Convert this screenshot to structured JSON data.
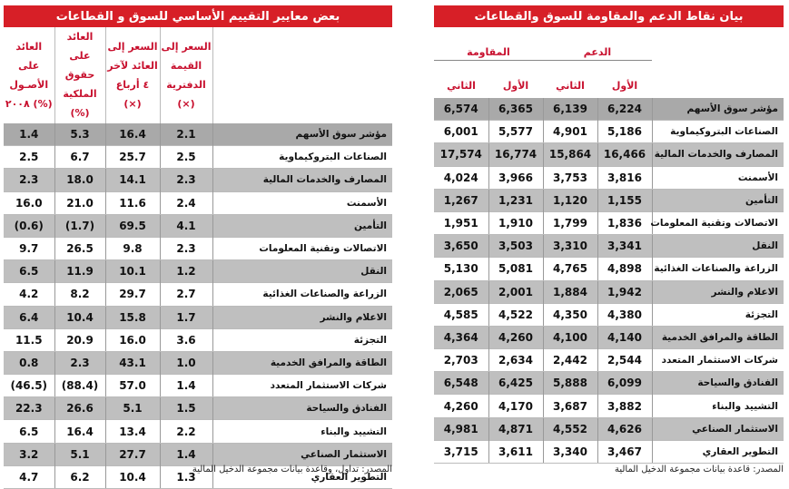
{
  "left": {
    "title": "بعض معايير التقييم الأساسي للسوق و القطاعات",
    "headers": [
      "العائد على الأصـول ٢٠٠٨ (%)",
      "العائد على حقوق الملكية (%)",
      "السعر إلى العائد لآخر ٤ أرباع (×)",
      "السعر إلى القيمة الدفترية (×)"
    ],
    "rows": [
      {
        "label": "مؤشر سوق الأسهم",
        "values": [
          "1.4",
          "5.3",
          "16.4",
          "2.1"
        ]
      },
      {
        "label": "الصناعات البتروكيماوية",
        "values": [
          "2.5",
          "6.7",
          "25.7",
          "2.5"
        ]
      },
      {
        "label": "المصارف والخدمات المالية",
        "values": [
          "2.3",
          "18.0",
          "14.1",
          "2.3"
        ]
      },
      {
        "label": "الأسمنت",
        "values": [
          "16.0",
          "21.0",
          "11.6",
          "2.4"
        ]
      },
      {
        "label": "التأمين",
        "values": [
          "(0.6)",
          "(1.7)",
          "69.5",
          "4.1"
        ]
      },
      {
        "label": "الاتصالات وتقنية المعلومات",
        "values": [
          "9.7",
          "26.5",
          "9.8",
          "2.3"
        ]
      },
      {
        "label": "النقل",
        "values": [
          "6.5",
          "11.9",
          "10.1",
          "1.2"
        ]
      },
      {
        "label": "الزراعة والصناعات الغذائية",
        "values": [
          "4.2",
          "8.2",
          "29.7",
          "2.7"
        ]
      },
      {
        "label": "الاعلام والنشر",
        "values": [
          "6.4",
          "10.4",
          "15.8",
          "1.7"
        ]
      },
      {
        "label": "التجزئة",
        "values": [
          "11.5",
          "20.9",
          "16.0",
          "3.6"
        ]
      },
      {
        "label": "الطاقة والمرافق الخدمية",
        "values": [
          "0.8",
          "2.3",
          "43.1",
          "1.0"
        ]
      },
      {
        "label": "شركات الاستثمار المتعدد",
        "values": [
          "(46.5)",
          "(88.4)",
          "57.0",
          "1.4"
        ]
      },
      {
        "label": "الفنادق والسياحة",
        "values": [
          "22.3",
          "26.6",
          "5.1",
          "1.5"
        ]
      },
      {
        "label": "التشييد والبناء",
        "values": [
          "6.5",
          "16.4",
          "13.4",
          "2.2"
        ]
      },
      {
        "label": "الاستثمار الصناعي",
        "values": [
          "3.2",
          "5.1",
          "27.7",
          "1.4"
        ]
      },
      {
        "label": "التطوير العقاري",
        "values": [
          "4.7",
          "6.2",
          "10.4",
          "1.3"
        ]
      }
    ],
    "source": "المصدر: تداول، وقاعدة بيانات مجموعة الدخيل المالية"
  },
  "right": {
    "title": "بيان نقاط الدعم والمقاومة للسوق والقطاعات",
    "group_resistance": "المقاومة",
    "group_support": "الدعم",
    "sub_headers": [
      "الثاني",
      "الأول",
      "الثاني",
      "الأول"
    ],
    "rows": [
      {
        "label": "مؤشر سوق الأسهم",
        "values": [
          "6,574",
          "6,365",
          "6,139",
          "6,224"
        ]
      },
      {
        "label": "الصناعات البتروكيماوية",
        "values": [
          "6,001",
          "5,577",
          "4,901",
          "5,186"
        ]
      },
      {
        "label": "المصارف والخدمات المالية",
        "values": [
          "17,574",
          "16,774",
          "15,864",
          "16,466"
        ]
      },
      {
        "label": "الأسمنت",
        "values": [
          "4,024",
          "3,966",
          "3,753",
          "3,816"
        ]
      },
      {
        "label": "التأمين",
        "values": [
          "1,267",
          "1,231",
          "1,120",
          "1,155"
        ]
      },
      {
        "label": "الاتصالات وتقنية المعلومات",
        "values": [
          "1,951",
          "1,910",
          "1,799",
          "1,836"
        ]
      },
      {
        "label": "النقل",
        "values": [
          "3,650",
          "3,503",
          "3,310",
          "3,341"
        ]
      },
      {
        "label": "الزراعة والصناعات الغذائية",
        "values": [
          "5,130",
          "5,081",
          "4,765",
          "4,898"
        ]
      },
      {
        "label": "الاعلام والنشر",
        "values": [
          "2,065",
          "2,001",
          "1,884",
          "1,942"
        ]
      },
      {
        "label": "التجزئة",
        "values": [
          "4,585",
          "4,522",
          "4,350",
          "4,380"
        ]
      },
      {
        "label": "الطاقة والمرافق الخدمية",
        "values": [
          "4,364",
          "4,260",
          "4,100",
          "4,140"
        ]
      },
      {
        "label": "شركات الاستثمار المتعدد",
        "values": [
          "2,703",
          "2,634",
          "2,442",
          "2,544"
        ]
      },
      {
        "label": "الفنادق والسياحة",
        "values": [
          "6,548",
          "6,425",
          "5,888",
          "6,099"
        ]
      },
      {
        "label": "التشييد والبناء",
        "values": [
          "4,260",
          "4,170",
          "3,687",
          "3,882"
        ]
      },
      {
        "label": "الاستثمار الصناعي",
        "values": [
          "4,981",
          "4,871",
          "4,552",
          "4,626"
        ]
      },
      {
        "label": "التطوير العقاري",
        "values": [
          "3,715",
          "3,611",
          "3,340",
          "3,467"
        ]
      }
    ],
    "source": "المصدر: قاعدة بيانات مجموعة الدخيل المالية"
  }
}
